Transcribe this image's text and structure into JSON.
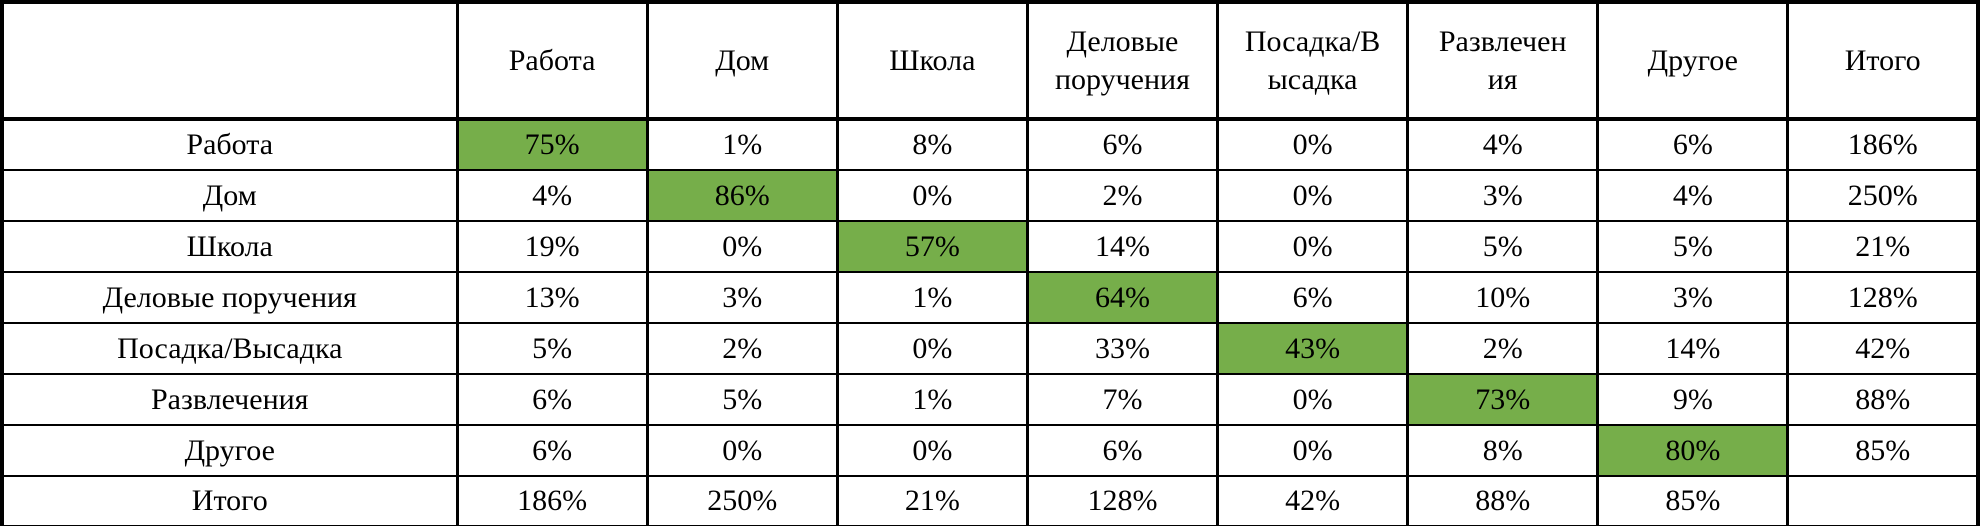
{
  "colors": {
    "highlight_green": "#76ae4a",
    "border_black": "#000000",
    "background": "#ffffff"
  },
  "chart_data": {
    "type": "table",
    "description": "Origin-destination percentage matrix with green-highlighted diagonal cells",
    "columns": [
      "",
      "Работа",
      "Дом",
      "Школа",
      "Деловые\nпоручения",
      "Посадка/В\nысадка",
      "Развлечен\nия",
      "Другое",
      "Итого"
    ],
    "rows": [
      {
        "label": "Работа",
        "values": [
          "75%",
          "1%",
          "8%",
          "6%",
          "0%",
          "4%",
          "6%",
          "186%"
        ],
        "highlight_col": 0
      },
      {
        "label": "Дом",
        "values": [
          "4%",
          "86%",
          "0%",
          "2%",
          "0%",
          "3%",
          "4%",
          "250%"
        ],
        "highlight_col": 1
      },
      {
        "label": "Школа",
        "values": [
          "19%",
          "0%",
          "57%",
          "14%",
          "0%",
          "5%",
          "5%",
          "21%"
        ],
        "highlight_col": 2
      },
      {
        "label": "Деловые поручения",
        "values": [
          "13%",
          "3%",
          "1%",
          "64%",
          "6%",
          "10%",
          "3%",
          "128%"
        ],
        "highlight_col": 3
      },
      {
        "label": "Посадка/Высадка",
        "values": [
          "5%",
          "2%",
          "0%",
          "33%",
          "43%",
          "2%",
          "14%",
          "42%"
        ],
        "highlight_col": 4
      },
      {
        "label": "Развлечения",
        "values": [
          "6%",
          "5%",
          "1%",
          "7%",
          "0%",
          "73%",
          "9%",
          "88%"
        ],
        "highlight_col": 5
      },
      {
        "label": "Другое",
        "values": [
          "6%",
          "0%",
          "0%",
          "6%",
          "0%",
          "8%",
          "80%",
          "85%"
        ],
        "highlight_col": 6
      },
      {
        "label": "Итого",
        "values": [
          "186%",
          "250%",
          "21%",
          "128%",
          "42%",
          "88%",
          "85%",
          ""
        ],
        "highlight_col": -1
      }
    ]
  }
}
